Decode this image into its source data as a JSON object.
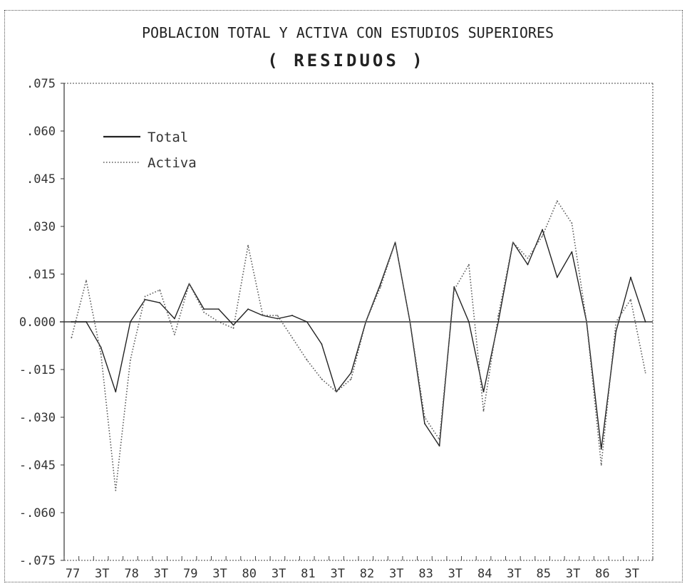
{
  "chart_data": {
    "type": "line",
    "title": "POBLACION TOTAL Y ACTIVA CON ESTUDIOS SUPERIORES",
    "subtitle": "( RESIDUOS )",
    "xlabel": "",
    "ylabel": "",
    "ylim": [
      -0.075,
      0.075
    ],
    "y_ticks": [
      0.075,
      0.06,
      0.045,
      0.03,
      0.015,
      0.0,
      -0.015,
      -0.03,
      -0.045,
      -0.06,
      -0.075
    ],
    "y_tick_labels": [
      ".075",
      ".060",
      ".045",
      ".030",
      ".015",
      "0.000",
      "-.015",
      "-.030",
      "-.045",
      "-.060",
      "-.075"
    ],
    "x_tick_labels": [
      "77",
      "3T",
      "78",
      "3T",
      "79",
      "3T",
      "80",
      "3T",
      "81",
      "3T",
      "82",
      "3T",
      "83",
      "3T",
      "84",
      "3T",
      "85",
      "3T",
      "86",
      "3T"
    ],
    "x": [
      "77",
      "",
      "3T",
      "",
      "78",
      "",
      "3T",
      "",
      "79",
      "",
      "3T",
      "",
      "80",
      "",
      "3T",
      "",
      "81",
      "",
      "3T",
      "",
      "82",
      "",
      "3T",
      "",
      "83",
      "",
      "3T",
      "",
      "84",
      "",
      "3T",
      "",
      "85",
      "",
      "3T",
      "",
      "86",
      "",
      "3T",
      ""
    ],
    "legend_position": "top-left",
    "grid": false,
    "zero_line": true,
    "series": [
      {
        "name": "Total",
        "style": "solid",
        "values": [
          0.0,
          0.0,
          -0.008,
          -0.022,
          0.0,
          0.007,
          0.006,
          0.001,
          0.012,
          0.004,
          0.004,
          -0.001,
          0.004,
          0.002,
          0.001,
          0.002,
          0.0,
          -0.007,
          -0.022,
          -0.016,
          0.0,
          0.012,
          0.025,
          0.0,
          -0.032,
          -0.039,
          0.011,
          0.0,
          -0.022,
          0.0,
          0.025,
          0.018,
          0.029,
          0.014,
          0.022,
          0.0,
          -0.04,
          -0.003,
          0.014,
          0.0
        ]
      },
      {
        "name": "Activa",
        "style": "dotted",
        "values": [
          -0.005,
          0.013,
          -0.01,
          -0.053,
          -0.012,
          0.008,
          0.01,
          -0.004,
          0.012,
          0.003,
          0.0,
          -0.002,
          0.024,
          0.002,
          0.002,
          -0.005,
          -0.012,
          -0.018,
          -0.022,
          -0.018,
          0.0,
          0.011,
          0.025,
          0.0,
          -0.03,
          -0.037,
          0.01,
          0.018,
          -0.028,
          0.002,
          0.025,
          0.02,
          0.027,
          0.038,
          0.031,
          0.0,
          -0.045,
          0.0,
          0.007,
          -0.016
        ]
      }
    ]
  }
}
